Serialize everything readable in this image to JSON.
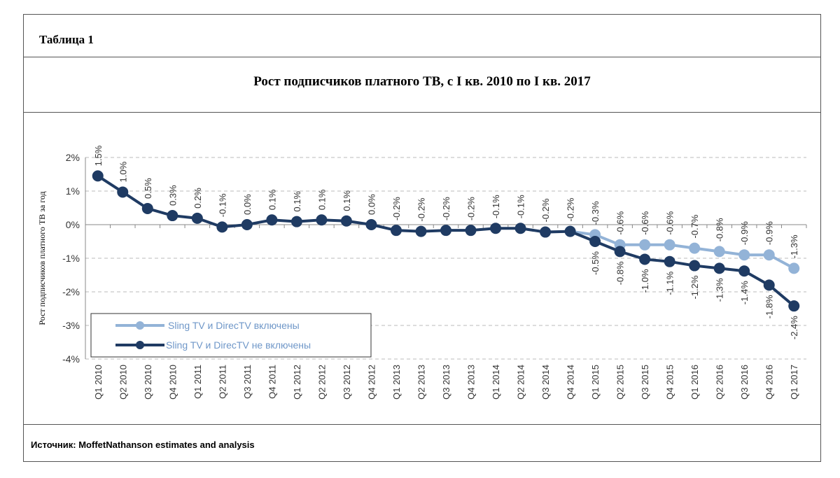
{
  "header": {
    "table_label": "Таблица 1",
    "title": "Рост подписчиков платного ТВ, с I кв. 2010 по I кв. 2017"
  },
  "source": "Источник: MoffetNathanson estimates and analysis",
  "chart_data": {
    "type": "line",
    "ylabel": "Рост подписчиков платного ТВ за год",
    "ylim": [
      -4,
      2
    ],
    "yticks": [
      "2%",
      "1%",
      "0%",
      "-1%",
      "-2%",
      "-3%",
      "-4%"
    ],
    "ytick_values": [
      2,
      1,
      0,
      -1,
      -2,
      -3,
      -4
    ],
    "grid": true,
    "legend_placement": "bottom-left",
    "categories": [
      "Q1 2010",
      "Q2 2010",
      "Q3 2010",
      "Q4 2010",
      "Q1 2011",
      "Q2 2011",
      "Q3 2011",
      "Q4 2011",
      "Q1 2012",
      "Q2 2012",
      "Q3 2012",
      "Q4 2012",
      "Q1 2013",
      "Q2 2013",
      "Q3 2013",
      "Q4 2013",
      "Q1 2014",
      "Q2 2014",
      "Q3 2014",
      "Q4 2014",
      "Q1 2015",
      "Q2 2015",
      "Q3 2015",
      "Q4 2015",
      "Q1 2016",
      "Q2 2016",
      "Q3 2016",
      "Q4 2016",
      "Q1 2017"
    ],
    "series": [
      {
        "name": "Sling TV и DirecTV включены",
        "color": "#93b3d7",
        "values": [
          null,
          null,
          null,
          null,
          null,
          null,
          null,
          null,
          null,
          null,
          null,
          null,
          null,
          null,
          null,
          null,
          null,
          null,
          null,
          -0.2,
          -0.3,
          -0.6,
          -0.6,
          -0.6,
          -0.7,
          -0.8,
          -0.9,
          -0.9,
          -1.3
        ],
        "labels": [
          null,
          null,
          null,
          null,
          null,
          null,
          null,
          null,
          null,
          null,
          null,
          null,
          null,
          null,
          null,
          null,
          null,
          null,
          null,
          null,
          "-0.3%",
          "-0.6%",
          "-0.6%",
          "-0.6%",
          "-0.7%",
          "-0.8%",
          "-0.9%",
          "-0.9%",
          "-1.3%"
        ]
      },
      {
        "name": "Sling TV и DirecTV не включены",
        "color": "#1f3b63",
        "values": [
          1.45,
          0.97,
          0.48,
          0.27,
          0.19,
          -0.07,
          0.0,
          0.14,
          0.09,
          0.14,
          0.11,
          0.0,
          -0.17,
          -0.2,
          -0.17,
          -0.17,
          -0.11,
          -0.11,
          -0.22,
          -0.2,
          -0.5,
          -0.8,
          -1.03,
          -1.1,
          -1.22,
          -1.3,
          -1.38,
          -1.8,
          -2.42
        ],
        "labels": [
          "1.5%",
          "1.0%",
          "0.5%",
          "0.3%",
          "0.2%",
          "-0.1%",
          "0.0%",
          "0.1%",
          "0.1%",
          "0.1%",
          "0.1%",
          "0.0%",
          "-0.2%",
          "-0.2%",
          "-0.2%",
          "-0.2%",
          "-0.1%",
          "-0.1%",
          "-0.2%",
          "-0.2%",
          "-0.5%",
          "-0.8%",
          "-1.0%",
          "-1.1%",
          "-1.2%",
          "-1.3%",
          "-1.4%",
          "-1.8%",
          "-2.4%"
        ]
      }
    ]
  }
}
